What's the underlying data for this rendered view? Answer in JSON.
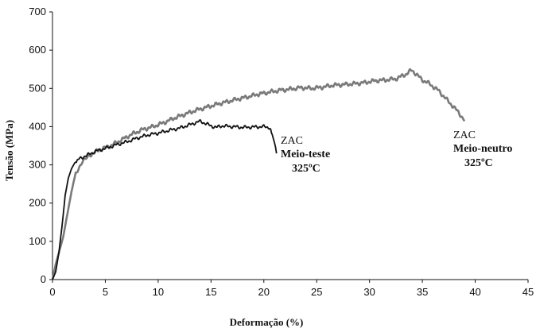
{
  "chart_data": {
    "type": "line",
    "title": "",
    "xlabel": "Deformação (%)",
    "ylabel": "Tensão (MPa)",
    "xlim": [
      0,
      45
    ],
    "ylim": [
      0,
      700
    ],
    "xticks": [
      0,
      5,
      10,
      15,
      20,
      25,
      30,
      35,
      40,
      45
    ],
    "yticks": [
      0,
      100,
      200,
      300,
      400,
      500,
      600,
      700
    ],
    "grid": false,
    "legend": "none",
    "series": [
      {
        "color": "#7a7a7a",
        "x": [
          0,
          0.3,
          0.6,
          1.0,
          1.4,
          1.8,
          2.2,
          2.8,
          3.5,
          4.5,
          5.5,
          6.5,
          7.5,
          8.5,
          9.5,
          10.5,
          11.5,
          12.5,
          13.5,
          14.5,
          15.5,
          16.5,
          17.5,
          18.5,
          19.5,
          20.5,
          21.5,
          22.5,
          23.5,
          24.5,
          25.5,
          26.5,
          27.5,
          28.5,
          29.5,
          30.5,
          31.5,
          32.5,
          33.5,
          34.0,
          34.5,
          35.0,
          35.5,
          36.0,
          36.5,
          37.0,
          37.5,
          38.0,
          38.5,
          39.0
        ],
        "y": [
          0,
          40,
          70,
          110,
          170,
          230,
          280,
          305,
          325,
          340,
          350,
          365,
          380,
          392,
          400,
          410,
          422,
          432,
          442,
          450,
          458,
          465,
          472,
          478,
          485,
          490,
          495,
          498,
          502,
          500,
          503,
          508,
          510,
          512,
          515,
          520,
          522,
          525,
          538,
          548,
          535,
          522,
          515,
          505,
          495,
          480,
          465,
          450,
          435,
          415
        ]
      },
      {
        "color": "#111111",
        "x": [
          0,
          0.3,
          0.6,
          0.9,
          1.2,
          1.5,
          1.8,
          2.1,
          2.5,
          3.0,
          3.5,
          4.0,
          5.0,
          6.0,
          7.0,
          8.0,
          9.0,
          10.0,
          11.0,
          12.0,
          13.0,
          13.5,
          14.0,
          14.5,
          15.0,
          15.5,
          16.0,
          17.0,
          18.0,
          19.0,
          20.0,
          20.5,
          20.8,
          21.0,
          21.2
        ],
        "y": [
          0,
          20,
          70,
          140,
          220,
          265,
          290,
          305,
          315,
          322,
          328,
          335,
          343,
          352,
          360,
          370,
          378,
          383,
          390,
          396,
          405,
          410,
          414,
          408,
          402,
          398,
          402,
          400,
          398,
          399,
          400,
          398,
          380,
          355,
          330
        ]
      }
    ],
    "annotations": [
      {
        "lines": [
          "ZAC",
          "Meio-teste",
          "325ºC"
        ]
      },
      {
        "lines": [
          "ZAC",
          "Meio-neutro",
          "325ºC"
        ]
      }
    ]
  }
}
